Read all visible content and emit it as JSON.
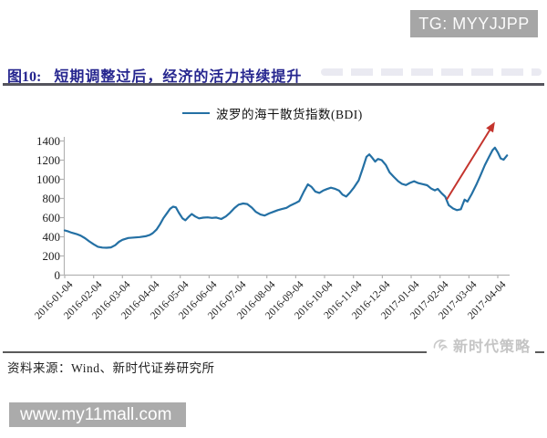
{
  "header": {
    "tg_badge": "TG: MYYJJPP"
  },
  "figure": {
    "label": "图10:",
    "title": "短期调整过后，经济的活力持续提升"
  },
  "footer": {
    "source": "资料来源：Wind、新时代证券研究所",
    "brand_watermark": "新时代策略",
    "site_watermark": "www.my11mall.com"
  },
  "colors": {
    "line": "#2470a4",
    "arrow": "#c4342d",
    "title_navy": "#26268f",
    "badge_gray": "#a6a6a6",
    "watermark_gray": "#c5c5c5",
    "axis_gray": "#b3b3b3"
  },
  "chart_data": {
    "type": "line",
    "title": "",
    "xlabel": "",
    "ylabel": "",
    "ylim": [
      0,
      1400
    ],
    "y_ticks": [
      0,
      200,
      400,
      600,
      800,
      1000,
      1200,
      1400
    ],
    "x_tick_labels": [
      "2016-01-04",
      "2016-02-04",
      "2016-03-04",
      "2016-04-04",
      "2016-05-04",
      "2016-06-04",
      "2016-07-04",
      "2016-08-04",
      "2016-09-04",
      "2016-10-04",
      "2016-11-04",
      "2016-12-04",
      "2017-01-04",
      "2017-02-04",
      "2017-03-04",
      "2017-04-04"
    ],
    "x_unit": "months offset from 2016-01-04",
    "grid": false,
    "legend_position": "top-center",
    "series": [
      {
        "name": "波罗的海干散货指数(BDI)",
        "color": "#2470a4",
        "points": [
          [
            0.0,
            467
          ],
          [
            0.12,
            456
          ],
          [
            0.25,
            442
          ],
          [
            0.4,
            430
          ],
          [
            0.55,
            412
          ],
          [
            0.7,
            386
          ],
          [
            0.85,
            352
          ],
          [
            1.0,
            322
          ],
          [
            1.15,
            296
          ],
          [
            1.3,
            288
          ],
          [
            1.45,
            286
          ],
          [
            1.6,
            290
          ],
          [
            1.75,
            312
          ],
          [
            1.88,
            348
          ],
          [
            2.0,
            369
          ],
          [
            2.2,
            388
          ],
          [
            2.4,
            392
          ],
          [
            2.6,
            397
          ],
          [
            2.8,
            406
          ],
          [
            2.95,
            420
          ],
          [
            3.05,
            438
          ],
          [
            3.18,
            475
          ],
          [
            3.3,
            530
          ],
          [
            3.42,
            595
          ],
          [
            3.55,
            650
          ],
          [
            3.65,
            692
          ],
          [
            3.75,
            714
          ],
          [
            3.85,
            708
          ],
          [
            3.95,
            652
          ],
          [
            4.08,
            592
          ],
          [
            4.18,
            572
          ],
          [
            4.3,
            610
          ],
          [
            4.4,
            638
          ],
          [
            4.52,
            612
          ],
          [
            4.65,
            592
          ],
          [
            4.8,
            600
          ],
          [
            4.95,
            603
          ],
          [
            5.1,
            597
          ],
          [
            5.25,
            601
          ],
          [
            5.42,
            586
          ],
          [
            5.58,
            612
          ],
          [
            5.72,
            650
          ],
          [
            5.88,
            700
          ],
          [
            6.02,
            735
          ],
          [
            6.18,
            748
          ],
          [
            6.32,
            742
          ],
          [
            6.48,
            705
          ],
          [
            6.62,
            660
          ],
          [
            6.78,
            632
          ],
          [
            6.92,
            622
          ],
          [
            7.08,
            644
          ],
          [
            7.22,
            660
          ],
          [
            7.38,
            678
          ],
          [
            7.52,
            690
          ],
          [
            7.68,
            702
          ],
          [
            7.82,
            728
          ],
          [
            7.98,
            750
          ],
          [
            8.12,
            772
          ],
          [
            8.28,
            870
          ],
          [
            8.42,
            948
          ],
          [
            8.55,
            920
          ],
          [
            8.68,
            872
          ],
          [
            8.82,
            858
          ],
          [
            8.95,
            882
          ],
          [
            9.08,
            898
          ],
          [
            9.22,
            912
          ],
          [
            9.35,
            902
          ],
          [
            9.5,
            882
          ],
          [
            9.62,
            840
          ],
          [
            9.75,
            820
          ],
          [
            9.88,
            862
          ],
          [
            10.02,
            915
          ],
          [
            10.18,
            988
          ],
          [
            10.32,
            1110
          ],
          [
            10.45,
            1235
          ],
          [
            10.55,
            1260
          ],
          [
            10.65,
            1225
          ],
          [
            10.75,
            1185
          ],
          [
            10.85,
            1212
          ],
          [
            10.98,
            1200
          ],
          [
            11.12,
            1150
          ],
          [
            11.25,
            1072
          ],
          [
            11.4,
            1025
          ],
          [
            11.55,
            980
          ],
          [
            11.68,
            952
          ],
          [
            11.82,
            940
          ],
          [
            11.95,
            962
          ],
          [
            12.1,
            980
          ],
          [
            12.25,
            960
          ],
          [
            12.4,
            950
          ],
          [
            12.55,
            938
          ],
          [
            12.7,
            902
          ],
          [
            12.82,
            885
          ],
          [
            12.92,
            900
          ],
          [
            13.05,
            855
          ],
          [
            13.18,
            818
          ],
          [
            13.3,
            730
          ],
          [
            13.45,
            695
          ],
          [
            13.58,
            678
          ],
          [
            13.72,
            688
          ],
          [
            13.85,
            788
          ],
          [
            13.95,
            768
          ],
          [
            14.1,
            848
          ],
          [
            14.25,
            940
          ],
          [
            14.4,
            1040
          ],
          [
            14.55,
            1148
          ],
          [
            14.7,
            1235
          ],
          [
            14.82,
            1305
          ],
          [
            14.9,
            1330
          ],
          [
            15.0,
            1282
          ],
          [
            15.1,
            1218
          ],
          [
            15.2,
            1205
          ],
          [
            15.32,
            1250
          ]
        ]
      }
    ],
    "annotation_arrow": {
      "from_month": 13.23,
      "from_value": 790,
      "to_month": 14.9,
      "to_value": 1600,
      "color": "#c4342d"
    }
  }
}
